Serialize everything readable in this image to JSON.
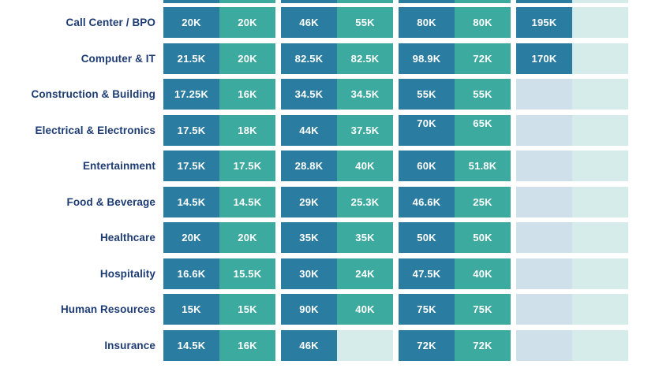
{
  "chart_data": {
    "type": "table",
    "unit": "K",
    "rows": [
      {
        "label": "Call Center / BPO",
        "values": [
          "20K",
          "20K",
          "46K",
          "55K",
          "80K",
          "80K",
          "195K",
          null
        ]
      },
      {
        "label": "Computer & IT",
        "values": [
          "21.5K",
          "20K",
          "82.5K",
          "82.5K",
          "98.9K",
          "72K",
          "170K",
          null
        ]
      },
      {
        "label": "Construction & Building",
        "values": [
          "17.25K",
          "16K",
          "34.5K",
          "34.5K",
          "55K",
          "55K",
          null,
          null
        ]
      },
      {
        "label": "Electrical & Electronics",
        "values": [
          "17.5K",
          "18K",
          "44K",
          "37.5K",
          "70K",
          "65K",
          null,
          null
        ]
      },
      {
        "label": "Entertainment",
        "values": [
          "17.5K",
          "17.5K",
          "28.8K",
          "40K",
          "60K",
          "51.8K",
          null,
          null
        ]
      },
      {
        "label": "Food & Beverage",
        "values": [
          "14.5K",
          "14.5K",
          "29K",
          "25.3K",
          "46.6K",
          "25K",
          null,
          null
        ]
      },
      {
        "label": "Healthcare",
        "values": [
          "20K",
          "20K",
          "35K",
          "35K",
          "50K",
          "50K",
          null,
          null
        ]
      },
      {
        "label": "Hospitality",
        "values": [
          "16.6K",
          "15.5K",
          "30K",
          "24K",
          "47.5K",
          "40K",
          null,
          null
        ]
      },
      {
        "label": "Human Resources",
        "values": [
          "15K",
          "15K",
          "90K",
          "40K",
          "75K",
          "75K",
          null,
          null
        ]
      },
      {
        "label": "Insurance",
        "values": [
          "14.5K",
          "16K",
          "46K",
          null,
          "72K",
          "72K",
          null,
          null
        ]
      }
    ],
    "top_partial_row_filled": [
      true,
      true,
      true,
      true,
      true,
      true,
      true,
      false
    ],
    "layout_hints": {
      "columns_per_row": 8,
      "column_pairs": 4,
      "raised_text_cells": {
        "row_label": "Electrical & Electronics",
        "cell_indexes": [
          4,
          5
        ]
      }
    },
    "colors": {
      "filled_first": "#2b7ca1",
      "filled_second": "#3caa9f",
      "empty_first": "#cfe0ea",
      "empty_second": "#d5eceb",
      "row_label_text": "#1e3c74",
      "cell_text": "#ffffff"
    }
  }
}
